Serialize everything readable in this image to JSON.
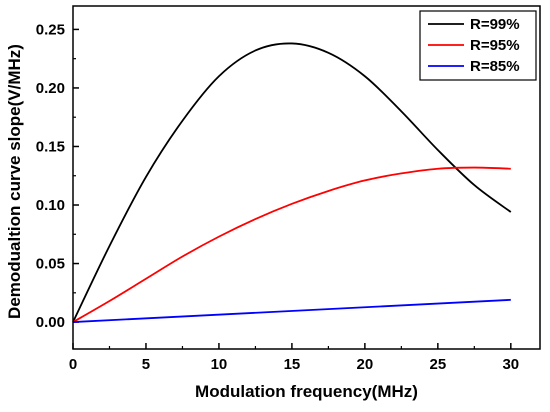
{
  "chart_data": {
    "type": "line",
    "title": "",
    "xlabel": "Modulation frequency(MHz)",
    "ylabel": "Demodualtion curve slope(V/MHz)",
    "xlim": [
      0,
      32
    ],
    "ylim": [
      -0.023,
      0.27
    ],
    "xticks": [
      0,
      5,
      10,
      15,
      20,
      25,
      30
    ],
    "yticks": [
      0.0,
      0.05,
      0.1,
      0.15,
      0.2,
      0.25
    ],
    "xtick_labels": [
      "0",
      "5",
      "10",
      "15",
      "20",
      "25",
      "30"
    ],
    "ytick_labels": [
      "0.00",
      "0.05",
      "0.10",
      "0.15",
      "0.20",
      "0.25"
    ],
    "grid": false,
    "legend_position": "top-right",
    "series": [
      {
        "name": "R=99%",
        "color": "#000000",
        "x": [
          0,
          2.5,
          5,
          7.5,
          10,
          12.5,
          15,
          17.5,
          20,
          22.5,
          25,
          27.5,
          30
        ],
        "y": [
          0.0,
          0.065,
          0.124,
          0.172,
          0.21,
          0.232,
          0.238,
          0.23,
          0.21,
          0.18,
          0.147,
          0.117,
          0.094
        ]
      },
      {
        "name": "R=95%",
        "color": "#ff0000",
        "x": [
          0,
          2.5,
          5,
          7.5,
          10,
          12.5,
          15,
          17.5,
          20,
          22.5,
          25,
          27.5,
          30
        ],
        "y": [
          0.0,
          0.018,
          0.037,
          0.056,
          0.073,
          0.088,
          0.101,
          0.112,
          0.121,
          0.127,
          0.131,
          0.132,
          0.131
        ]
      },
      {
        "name": "R=85%",
        "color": "#0000ff",
        "x": [
          0,
          30
        ],
        "y": [
          0.0,
          0.019
        ]
      }
    ]
  }
}
